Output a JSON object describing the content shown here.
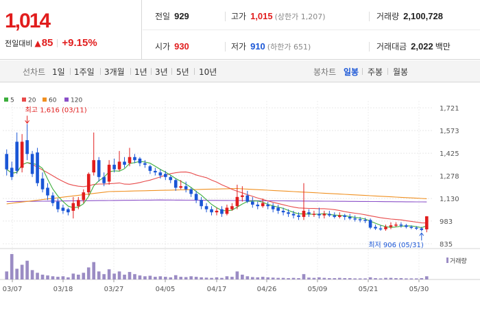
{
  "quote": {
    "price": "1,014",
    "change_label": "전일대비",
    "change_value": "85",
    "change_pct": "+9.15%",
    "prev_close_label": "전일",
    "prev_close": "929",
    "high_label": "고가",
    "high": "1,015",
    "upper_limit": "(상한가 1,207)",
    "volume_label": "거래량",
    "volume": "2,100,728",
    "open_label": "시가",
    "open": "930",
    "low_label": "저가",
    "low": "910",
    "lower_limit": "(하한가 651)",
    "trade_value_label": "거래대금",
    "trade_value": "2,022",
    "trade_value_unit": "백만"
  },
  "toolbar": {
    "line_chart_label": "선차트",
    "line_periods": [
      "1일",
      "1주일",
      "3개월",
      "1년",
      "3년",
      "5년",
      "10년"
    ],
    "candle_chart_label": "봉차트",
    "candle_periods": [
      "일봉",
      "주봉",
      "월봉"
    ],
    "active_candle_period": "일봉"
  },
  "colors": {
    "up": "#e11d1d",
    "down": "#1a56d6",
    "ma5": "#3cae3c",
    "ma20": "#e84a4a",
    "ma60": "#f09020",
    "ma120": "#8a4fc8"
  },
  "chart_data": {
    "type": "candlestick",
    "legend": [
      "5",
      "20",
      "60",
      "120"
    ],
    "y_ticks": [
      "1,721",
      "1,573",
      "1,425",
      "1,278",
      "1,130",
      "983",
      "835"
    ],
    "ylim": [
      835,
      1721
    ],
    "x_ticks": [
      "03/07",
      "03/18",
      "03/27",
      "04/05",
      "04/17",
      "04/26",
      "05/09",
      "05/21",
      "05/30"
    ],
    "max_annotation": "최고 1,616 (03/11)",
    "min_annotation": "최저 906 (05/31)",
    "volume_legend": "거래량",
    "candles": []
  }
}
